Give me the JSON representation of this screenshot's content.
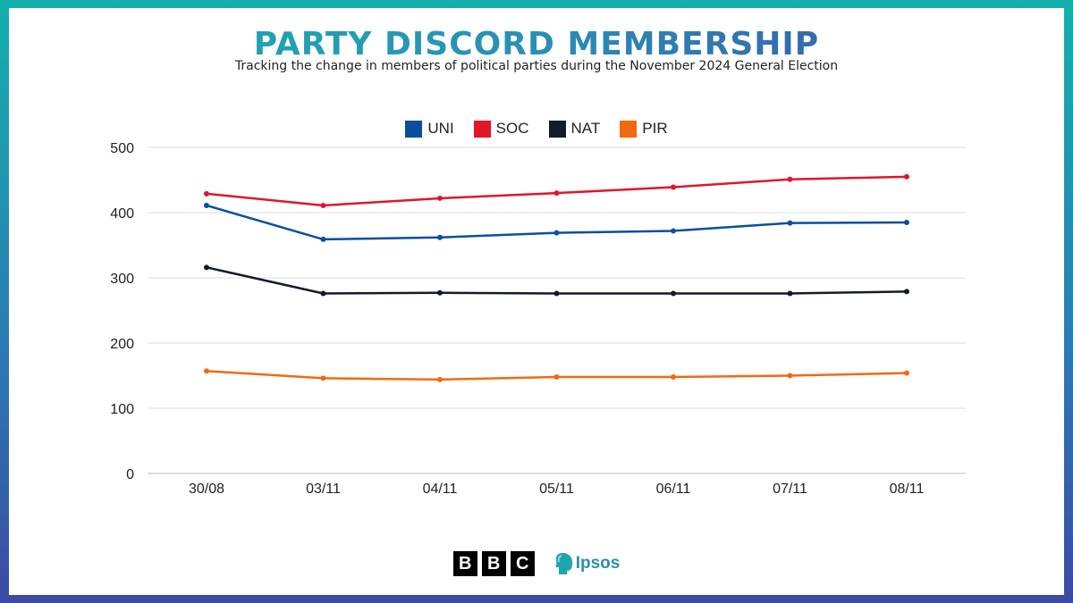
{
  "title": "PARTY DISCORD MEMBERSHIP",
  "subtitle": "Tracking the change in members of political parties during the November 2024 General Election",
  "chart_data": {
    "type": "line",
    "categories": [
      "30/08",
      "03/11",
      "04/11",
      "05/11",
      "06/11",
      "07/11",
      "08/11"
    ],
    "series": [
      {
        "name": "UNI",
        "color": "#0b4f9c",
        "values": [
          411,
          359,
          362,
          369,
          372,
          384,
          385
        ]
      },
      {
        "name": "SOC",
        "color": "#e0162b",
        "values": [
          429,
          411,
          422,
          430,
          439,
          451,
          455
        ]
      },
      {
        "name": "NAT",
        "color": "#141a2c",
        "values": [
          316,
          276,
          277,
          276,
          276,
          276,
          279
        ]
      },
      {
        "name": "PIR",
        "color": "#f26a10",
        "values": [
          157,
          146,
          144,
          148,
          148,
          150,
          154
        ]
      }
    ],
    "ylim": [
      0,
      500
    ],
    "yticks": [
      0,
      100,
      200,
      300,
      400,
      500
    ],
    "grid": true,
    "legend_position": "top-center"
  },
  "logos": {
    "bbc_letters": [
      "B",
      "B",
      "C"
    ],
    "ipsos_text": "Ipsos"
  }
}
